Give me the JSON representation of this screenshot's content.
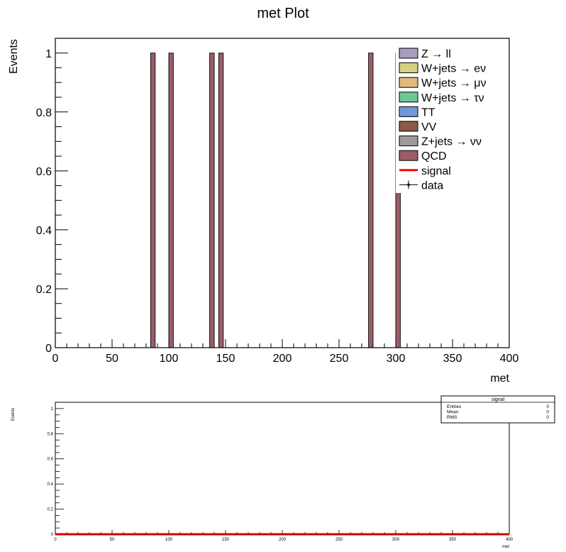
{
  "chart_data": [
    {
      "type": "bar",
      "title": "met Plot",
      "xlabel": "met",
      "ylabel": "Events",
      "xlim": [
        0,
        400
      ],
      "ylim": [
        0,
        1.05
      ],
      "x_ticks": [
        "0",
        "50",
        "100",
        "150",
        "200",
        "250",
        "300",
        "350",
        "400"
      ],
      "y_ticks": [
        "0",
        "0.2",
        "0.4",
        "0.6",
        "0.8",
        "1"
      ],
      "bin_width": 4,
      "stacked": true,
      "series": [
        {
          "name": "QCD",
          "color": "#9a5e69",
          "bins": [
            {
              "x_low": 84,
              "x_high": 88,
              "value": 1
            },
            {
              "x_low": 100,
              "x_high": 104,
              "value": 1
            },
            {
              "x_low": 136,
              "x_high": 140,
              "value": 1
            },
            {
              "x_low": 144,
              "x_high": 148,
              "value": 1
            },
            {
              "x_low": 276,
              "x_high": 280,
              "value": 1
            },
            {
              "x_low": 300,
              "x_high": 304,
              "value": 1
            }
          ]
        }
      ],
      "legend": {
        "placement": "top-right",
        "entries": [
          {
            "label": "Z → ll",
            "kind": "fill",
            "color": "#a99cbf"
          },
          {
            "label": "W+jets → eν",
            "kind": "fill",
            "color": "#d4d184"
          },
          {
            "label": "W+jets → μν",
            "kind": "fill",
            "color": "#e3b87d"
          },
          {
            "label": "W+jets → τν",
            "kind": "fill",
            "color": "#6cc79a"
          },
          {
            "label": "TT",
            "kind": "fill",
            "color": "#7396db"
          },
          {
            "label": "VV",
            "kind": "fill",
            "color": "#8b5a45"
          },
          {
            "label": "Z+jets → νν",
            "kind": "fill",
            "color": "#9b9b9b"
          },
          {
            "label": "QCD",
            "kind": "fill",
            "color": "#9a5e69"
          },
          {
            "label": "signal",
            "kind": "line",
            "color": "#ff0000"
          },
          {
            "label": "data",
            "kind": "marker",
            "color": "#000000"
          }
        ]
      }
    },
    {
      "type": "line",
      "title": "",
      "xlabel": "met",
      "ylabel": "Events",
      "xlim": [
        0,
        400
      ],
      "ylim": [
        0,
        1.05
      ],
      "x_ticks": [
        "0",
        "50",
        "100",
        "150",
        "200",
        "250",
        "300",
        "350",
        "400"
      ],
      "y_ticks": [
        "0",
        "0.2",
        "0.4",
        "0.6",
        "0.8",
        "1"
      ],
      "series": [
        {
          "name": "signal",
          "color": "#cc0000",
          "x": [
            0,
            400
          ],
          "y": [
            0,
            0
          ]
        }
      ],
      "stats_box": {
        "title": "signal",
        "rows": [
          {
            "label": "Entries",
            "value": "0"
          },
          {
            "label": "Mean",
            "value": "0"
          },
          {
            "label": "RMS",
            "value": "0"
          }
        ]
      }
    }
  ]
}
